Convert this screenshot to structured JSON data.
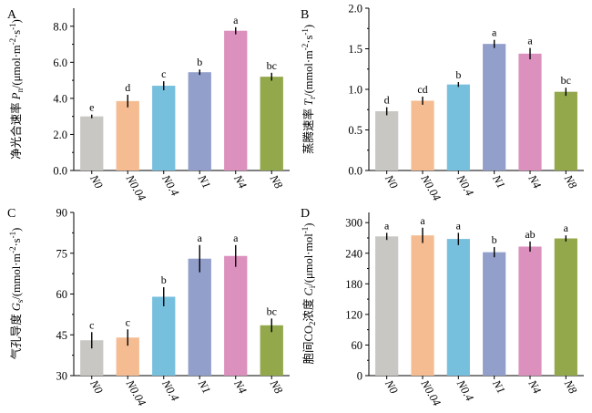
{
  "colors": [
    "#c8c7c3",
    "#f5bc92",
    "#76c0de",
    "#929fcb",
    "#dc90bd",
    "#93a74b"
  ],
  "chart_data": [
    {
      "type": "bar",
      "panel": "A",
      "ylabel": "净光合速率 P_n/(μmol·m⁻²·s⁻¹)",
      "ylabel_parts": [
        "净光合速率 ",
        "P",
        "n",
        "/(μmol·m",
        "-2",
        "·s",
        "-1",
        ")"
      ],
      "categories": [
        "N0",
        "N0.04",
        "N0.4",
        "N1",
        "N4",
        "N8"
      ],
      "values": [
        3.0,
        3.85,
        4.7,
        5.45,
        7.75,
        5.2
      ],
      "errors": [
        0.1,
        0.35,
        0.25,
        0.15,
        0.2,
        0.22
      ],
      "significance": [
        "e",
        "d",
        "c",
        "b",
        "a",
        "bc"
      ],
      "ylim": [
        0,
        9
      ],
      "yticks": [
        0,
        2,
        4,
        6,
        8
      ],
      "ytick_labels": [
        "0.0",
        "2.0",
        "4.0",
        "6.0",
        "8.0"
      ]
    },
    {
      "type": "bar",
      "panel": "B",
      "ylabel": "蒸腾速率 T_r/(mmol·m⁻²·s⁻¹)",
      "ylabel_parts": [
        "蒸腾速率 ",
        "T",
        "r",
        "/(mmol·m",
        "-2",
        "·s",
        "-1",
        ")"
      ],
      "categories": [
        "N0",
        "N0.04",
        "N0.4",
        "N1",
        "N4",
        "N8"
      ],
      "values": [
        0.73,
        0.86,
        1.06,
        1.56,
        1.44,
        0.97
      ],
      "errors": [
        0.05,
        0.05,
        0.03,
        0.05,
        0.07,
        0.05
      ],
      "significance": [
        "d",
        "cd",
        "b",
        "a",
        "a",
        "bc"
      ],
      "ylim": [
        0,
        2.0
      ],
      "yticks": [
        0,
        0.5,
        1.0,
        1.5,
        2.0
      ],
      "ytick_labels": [
        "0.0",
        "0.5",
        "1.0",
        "1.5",
        "2.0"
      ]
    },
    {
      "type": "bar",
      "panel": "C",
      "ylabel": "气孔导度 G_s/(mmol·m⁻²·s⁻¹)",
      "ylabel_parts": [
        "气孔导度 ",
        "G",
        "s",
        "/(mmol·m",
        "-2",
        "·s",
        "-1",
        ")"
      ],
      "categories": [
        "N0",
        "N0.04",
        "N0.4",
        "N1",
        "N4",
        "N8"
      ],
      "values": [
        43,
        44,
        59,
        73,
        74,
        48.5
      ],
      "errors": [
        3,
        3,
        3.5,
        5,
        4,
        2.5
      ],
      "significance": [
        "c",
        "c",
        "b",
        "a",
        "a",
        "bc"
      ],
      "ylim": [
        30,
        90
      ],
      "yticks": [
        30,
        45,
        60,
        75,
        90
      ],
      "ytick_labels": [
        "30",
        "45",
        "60",
        "75",
        "90"
      ]
    },
    {
      "type": "bar",
      "panel": "D",
      "ylabel": "胞间CO₂浓度 C_i/(μmol·mol⁻¹)",
      "ylabel_parts": [
        "胞间CO",
        "2",
        "浓度 ",
        "C",
        "i",
        "/(μmol·mol",
        "-1",
        ")"
      ],
      "categories": [
        "N0",
        "N0.04",
        "N0.4",
        "N1",
        "N4",
        "N8"
      ],
      "values": [
        273,
        275,
        268,
        242,
        253,
        269
      ],
      "errors": [
        7,
        15,
        12,
        10,
        10,
        6
      ],
      "significance": [
        "a",
        "a",
        "a",
        "b",
        "ab",
        "a"
      ],
      "ylim": [
        0,
        320
      ],
      "yticks": [
        0,
        60,
        120,
        180,
        240,
        300
      ],
      "ytick_labels": [
        "0",
        "60",
        "120",
        "180",
        "240",
        "300"
      ]
    }
  ]
}
